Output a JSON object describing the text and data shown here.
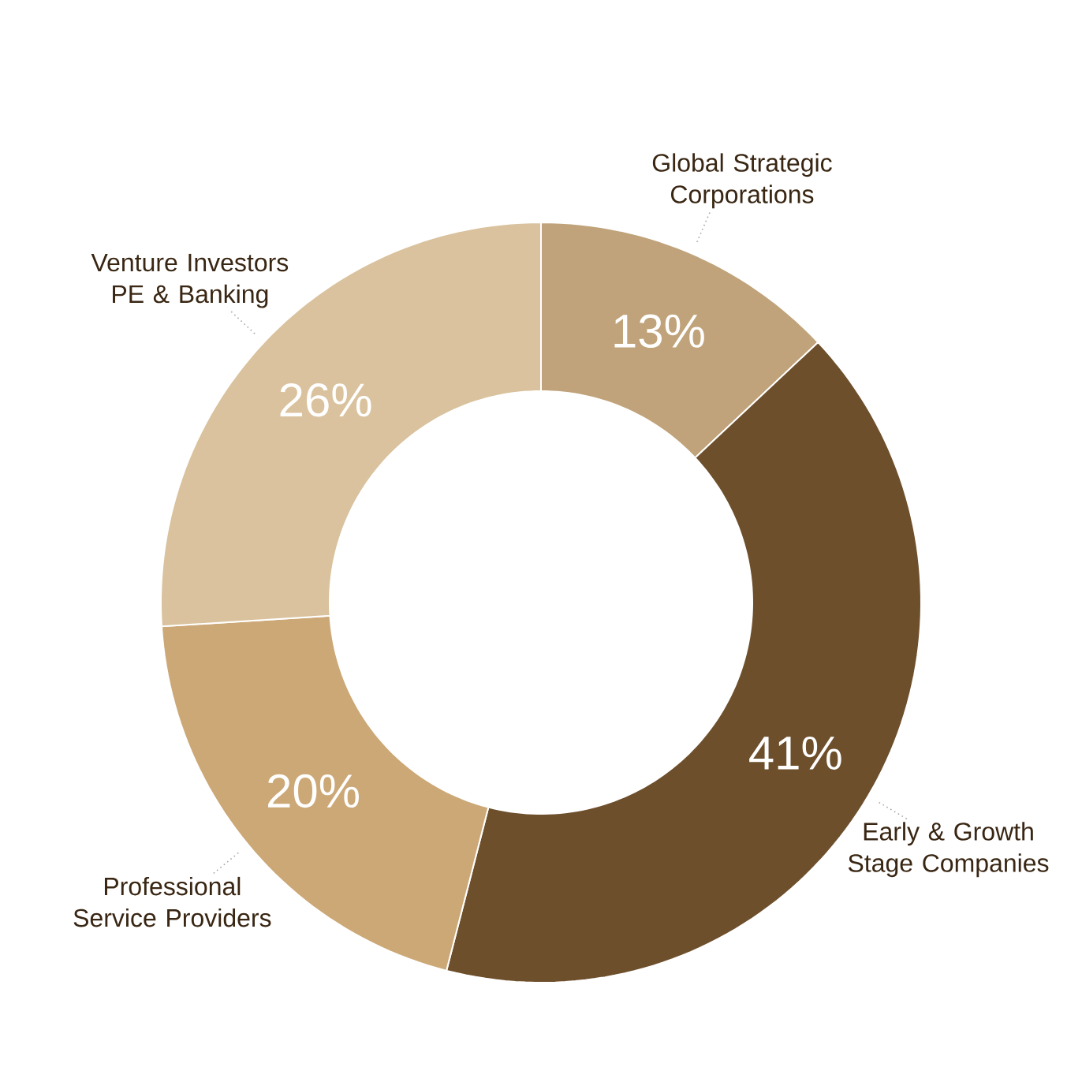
{
  "chart_data": {
    "type": "donut",
    "categories": [
      "Global Strategic Corporations",
      "Early & Growth Stage Companies",
      "Professional Service Providers",
      "Venture Investors PE & Banking"
    ],
    "values": [
      13,
      41,
      20,
      26
    ],
    "value_labels": [
      "13%",
      "41%",
      "20%",
      "26%"
    ],
    "colors": [
      "#c0a37a",
      "#6e4f2c",
      "#cca877",
      "#d9c29d"
    ]
  }
}
